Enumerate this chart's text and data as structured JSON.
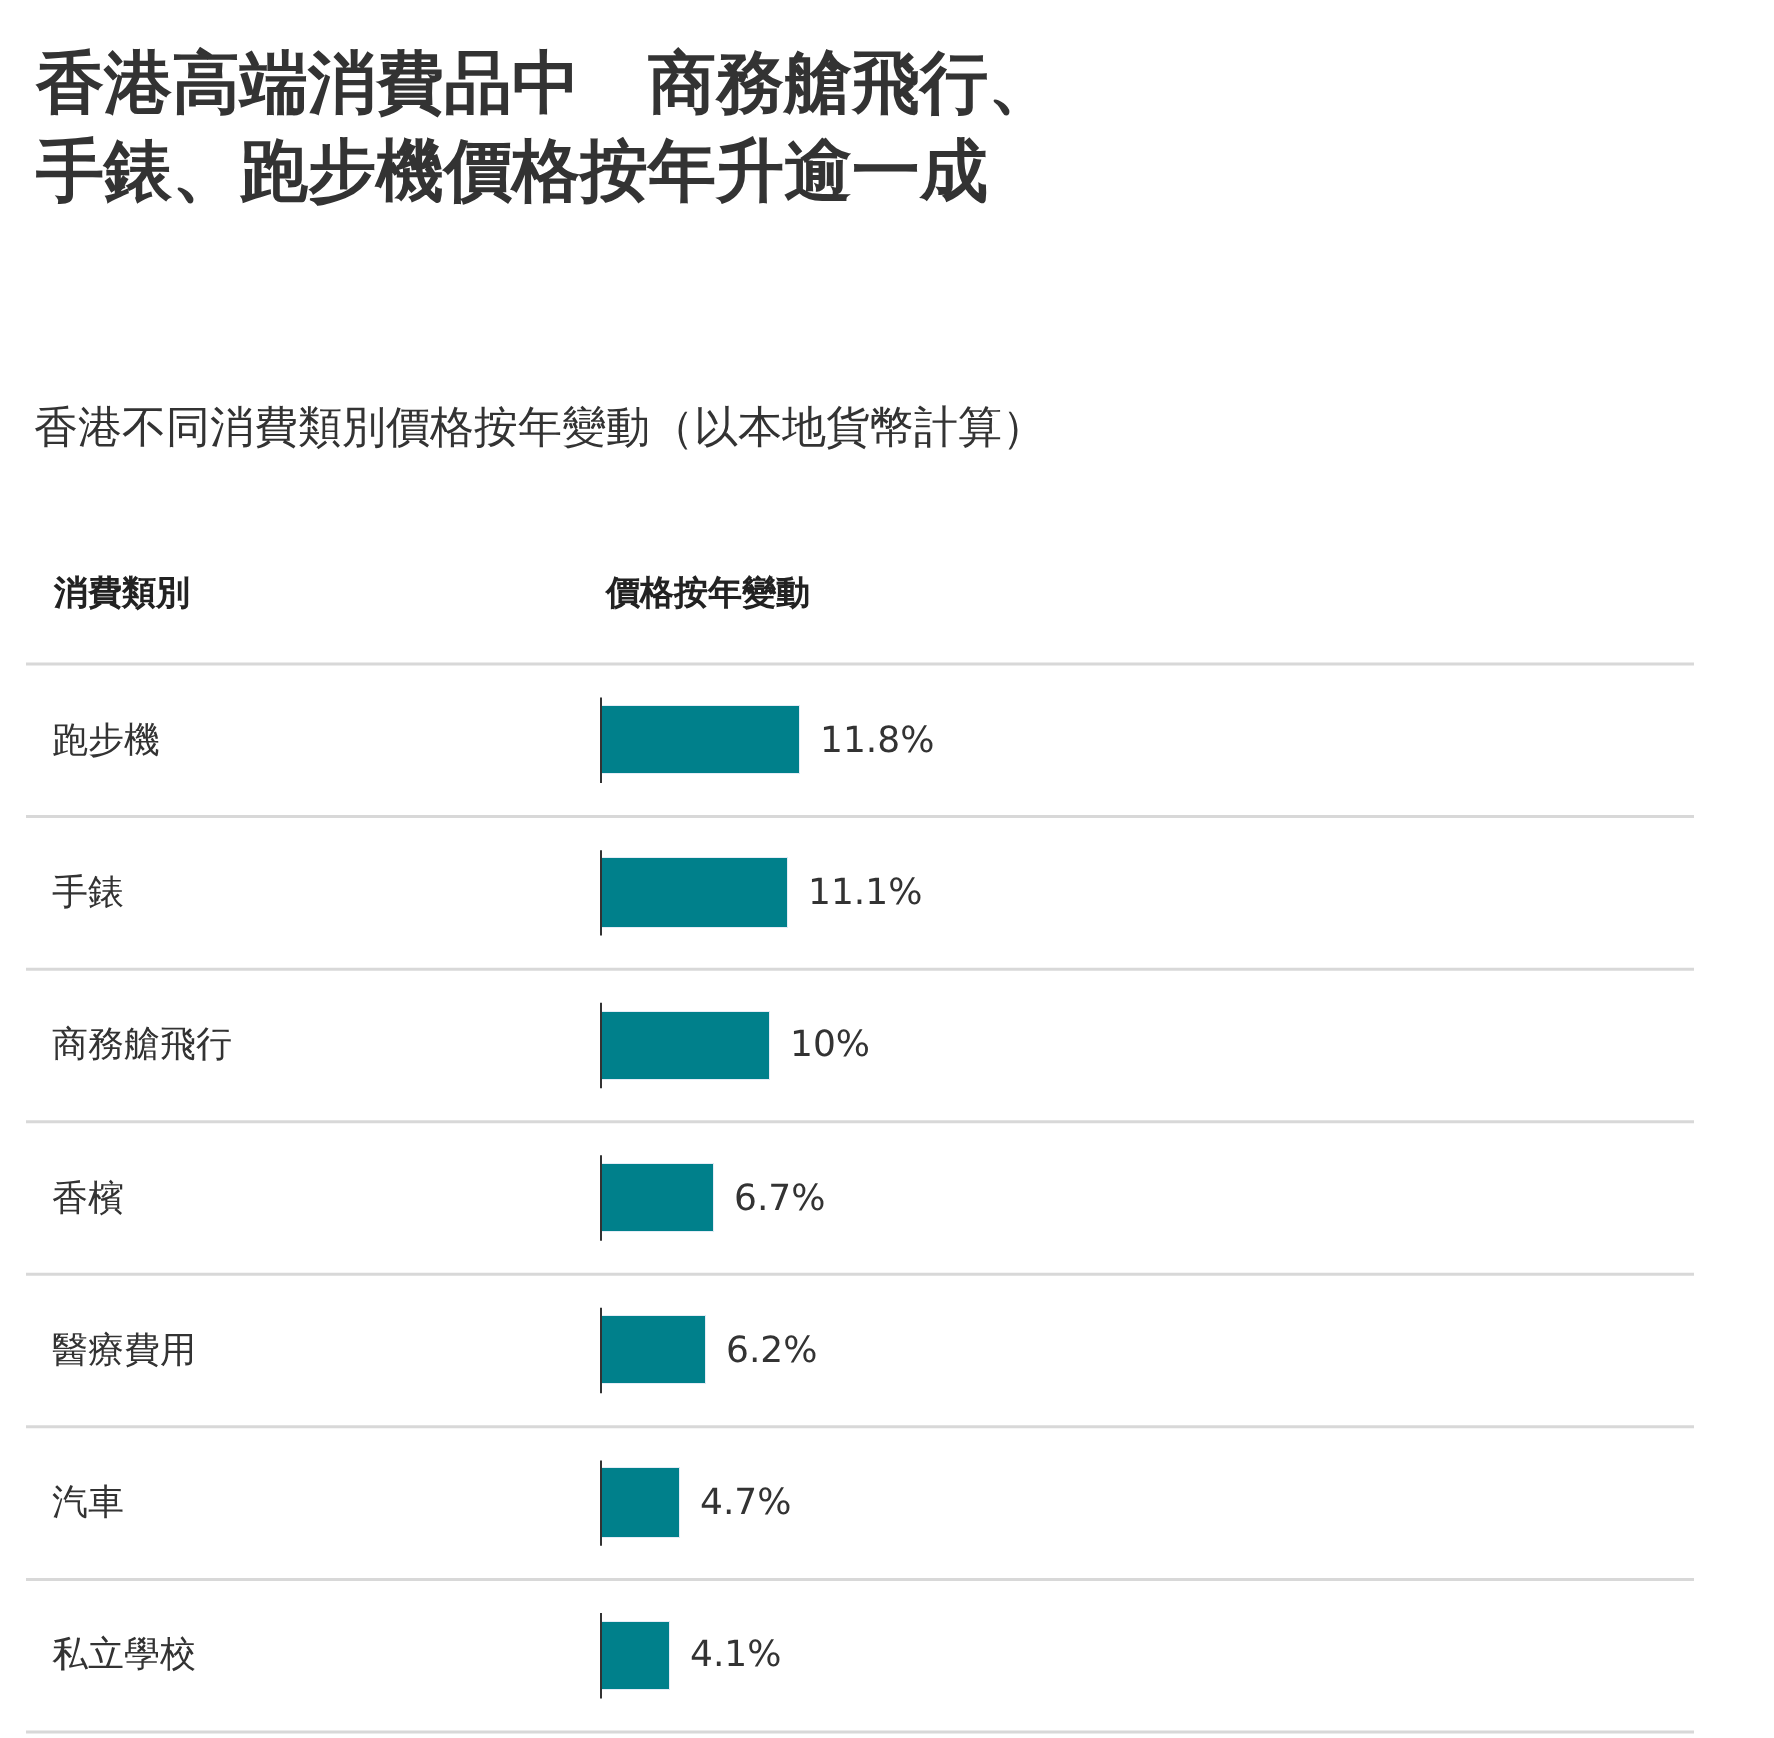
{
  "chart_data": {
    "type": "bar",
    "orientation": "horizontal",
    "title": "香港高端消費品中　商務艙飛行、手錶、跑步機價格按年升逾一成",
    "subtitle": "香港不同消費類別價格按年變動（以本地貨幣計算）",
    "annotations": [
      "消費類別",
      "價格按年變動"
    ],
    "categories": [
      "跑步機",
      "手錶",
      "商務艙飛行",
      "香檳",
      "醫療費用",
      "汽車",
      "私立學校"
    ],
    "values": [
      11.8,
      11.1,
      10,
      6.7,
      6.2,
      4.7,
      4.1
    ],
    "value_labels": [
      "11.8%",
      "11.1%",
      "10%",
      "6.7%",
      "6.2%",
      "4.7%",
      "4.1%"
    ],
    "color": "#00808b",
    "legend": false
  }
}
